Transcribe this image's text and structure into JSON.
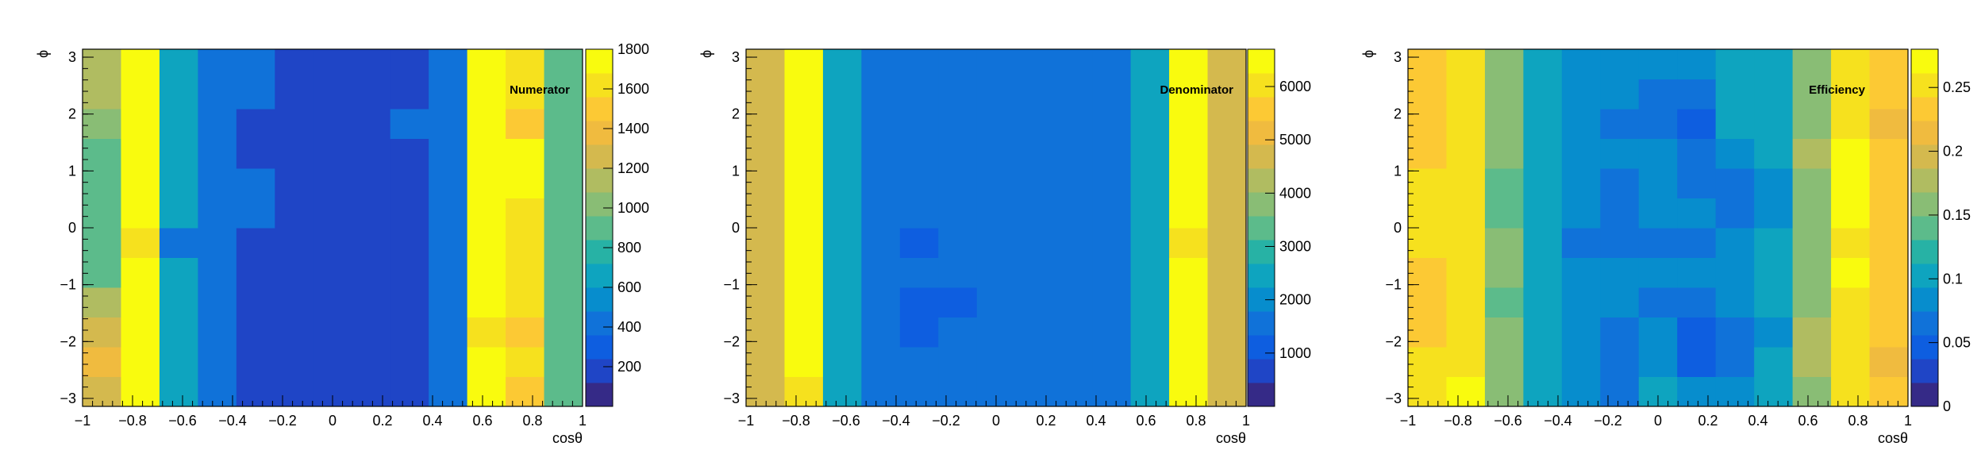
{
  "chart_data": [
    {
      "type": "heatmap",
      "title": "Numerator",
      "xlabel": "cosθ",
      "ylabel": "ϕ",
      "xlim": [
        -1,
        1
      ],
      "ylim": [
        -3.14,
        3.14
      ],
      "x_ticks": [
        "−1",
        "−0.8",
        "−0.6",
        "−0.4",
        "−0.2",
        "0",
        "0.2",
        "0.4",
        "0.6",
        "0.8",
        "1"
      ],
      "y_ticks": [
        "−3",
        "−2",
        "−1",
        "0",
        "1",
        "2",
        "3"
      ],
      "z_ticks": [
        "200",
        "400",
        "600",
        "800",
        "1000",
        "1200",
        "1400",
        "1600",
        "1800"
      ],
      "zlim": [
        0,
        1800
      ],
      "bins_x": 13,
      "bins_y": 12,
      "values": [
        [
          1250,
          1700,
          600,
          380,
          220,
          220,
          220,
          220,
          220,
          380,
          1780,
          1550,
          900
        ],
        [
          1350,
          1780,
          600,
          380,
          220,
          220,
          220,
          220,
          220,
          380,
          1780,
          1650,
          900
        ],
        [
          1200,
          1700,
          600,
          380,
          220,
          220,
          220,
          220,
          220,
          380,
          1650,
          1550,
          900
        ],
        [
          1100,
          1750,
          600,
          380,
          220,
          220,
          220,
          220,
          220,
          380,
          1700,
          1650,
          850
        ],
        [
          900,
          1700,
          600,
          380,
          220,
          220,
          220,
          220,
          220,
          380,
          1750,
          1650,
          850
        ],
        [
          900,
          1650,
          450,
          380,
          220,
          220,
          220,
          220,
          220,
          380,
          1700,
          1650,
          850
        ],
        [
          850,
          1700,
          600,
          380,
          380,
          220,
          220,
          220,
          220,
          380,
          1750,
          1650,
          850
        ],
        [
          850,
          1750,
          600,
          380,
          380,
          220,
          220,
          220,
          220,
          380,
          1800,
          1700,
          850
        ],
        [
          950,
          1750,
          600,
          380,
          220,
          220,
          220,
          220,
          220,
          380,
          1800,
          1700,
          900
        ],
        [
          1050,
          1750,
          600,
          380,
          220,
          220,
          220,
          220,
          380,
          380,
          1800,
          1550,
          900
        ],
        [
          1100,
          1750,
          600,
          380,
          380,
          220,
          220,
          220,
          220,
          380,
          1750,
          1600,
          950
        ],
        [
          1100,
          1750,
          600,
          380,
          380,
          220,
          220,
          220,
          220,
          380,
          1750,
          1600,
          950
        ]
      ]
    },
    {
      "type": "heatmap",
      "title": "Denominator",
      "xlabel": "cosθ",
      "ylabel": "ϕ",
      "xlim": [
        -1,
        1
      ],
      "ylim": [
        -3.14,
        3.14
      ],
      "x_ticks": [
        "−1",
        "−0.8",
        "−0.6",
        "−0.4",
        "−0.2",
        "0",
        "0.2",
        "0.4",
        "0.6",
        "0.8",
        "1"
      ],
      "y_ticks": [
        "−3",
        "−2",
        "−1",
        "0",
        "1",
        "2",
        "3"
      ],
      "z_ticks": [
        "1000",
        "2000",
        "3000",
        "4000",
        "5000",
        "6000"
      ],
      "zlim": [
        0,
        6700
      ],
      "bins_x": 13,
      "bins_y": 12,
      "values": [
        [
          4900,
          6200,
          2400,
          1700,
          1500,
          1500,
          1500,
          1500,
          1500,
          1700,
          2600,
          6600,
          4800
        ],
        [
          4800,
          6600,
          2400,
          1700,
          1500,
          1500,
          1500,
          1500,
          1500,
          1700,
          2400,
          6600,
          4800
        ],
        [
          4800,
          6600,
          2400,
          1700,
          1300,
          1500,
          1500,
          1500,
          1500,
          1700,
          2400,
          6600,
          4800
        ],
        [
          4800,
          6600,
          2400,
          1700,
          1300,
          1300,
          1500,
          1500,
          1500,
          1700,
          2400,
          6600,
          4800
        ],
        [
          4800,
          6600,
          2400,
          1700,
          1500,
          1500,
          1500,
          1500,
          1500,
          1700,
          2400,
          6600,
          4800
        ],
        [
          4800,
          6600,
          2400,
          1700,
          1300,
          1500,
          1500,
          1500,
          1500,
          1700,
          2400,
          6200,
          4800
        ],
        [
          4800,
          6600,
          2400,
          1700,
          1700,
          1500,
          1500,
          1500,
          1500,
          1700,
          2400,
          6600,
          4800
        ],
        [
          4800,
          6600,
          2400,
          1700,
          1500,
          1500,
          1500,
          1500,
          1500,
          1700,
          2400,
          6600,
          4800
        ],
        [
          4800,
          6600,
          2400,
          1700,
          1500,
          1500,
          1500,
          1500,
          1500,
          1700,
          2400,
          6600,
          4800
        ],
        [
          4800,
          6600,
          2400,
          1700,
          1500,
          1500,
          1500,
          1500,
          1500,
          1700,
          2400,
          6600,
          4800
        ],
        [
          4800,
          6600,
          2400,
          1700,
          1500,
          1500,
          1500,
          1500,
          1500,
          1700,
          2400,
          6600,
          4800
        ],
        [
          4800,
          6600,
          2400,
          1700,
          1500,
          1500,
          1500,
          1500,
          1500,
          1700,
          2400,
          6600,
          4800
        ]
      ]
    },
    {
      "type": "heatmap",
      "title": "Efficiency",
      "xlabel": "cosθ",
      "ylabel": "ϕ",
      "xlim": [
        -1,
        1
      ],
      "ylim": [
        -3.14,
        3.14
      ],
      "x_ticks": [
        "−1",
        "−0.8",
        "−0.6",
        "−0.4",
        "−0.2",
        "0",
        "0.2",
        "0.4",
        "0.6",
        "0.8",
        "1"
      ],
      "y_ticks": [
        "−3",
        "−2",
        "−1",
        "0",
        "1",
        "2",
        "3"
      ],
      "z_ticks": [
        "0",
        "0.05",
        "0.1",
        "0.15",
        "0.2",
        "0.25"
      ],
      "zlim": [
        0,
        0.28
      ],
      "bins_x": 13,
      "bins_y": 12,
      "values": [
        [
          0.25,
          0.28,
          0.15,
          0.1,
          0.08,
          0.07,
          0.1,
          0.08,
          0.08,
          0.1,
          0.15,
          0.25,
          0.23
        ],
        [
          0.25,
          0.26,
          0.15,
          0.1,
          0.08,
          0.07,
          0.08,
          0.05,
          0.07,
          0.1,
          0.17,
          0.26,
          0.22
        ],
        [
          0.24,
          0.25,
          0.16,
          0.11,
          0.08,
          0.07,
          0.08,
          0.05,
          0.07,
          0.09,
          0.17,
          0.26,
          0.23
        ],
        [
          0.24,
          0.25,
          0.14,
          0.11,
          0.09,
          0.08,
          0.07,
          0.07,
          0.08,
          0.1,
          0.15,
          0.26,
          0.23
        ],
        [
          0.23,
          0.25,
          0.15,
          0.1,
          0.08,
          0.09,
          0.08,
          0.08,
          0.09,
          0.11,
          0.16,
          0.27,
          0.23
        ],
        [
          0.25,
          0.25,
          0.15,
          0.11,
          0.07,
          0.07,
          0.07,
          0.07,
          0.08,
          0.1,
          0.16,
          0.26,
          0.23
        ],
        [
          0.25,
          0.25,
          0.14,
          0.1,
          0.08,
          0.07,
          0.08,
          0.08,
          0.07,
          0.09,
          0.16,
          0.27,
          0.24
        ],
        [
          0.25,
          0.25,
          0.14,
          0.1,
          0.08,
          0.07,
          0.08,
          0.06,
          0.07,
          0.09,
          0.16,
          0.27,
          0.24
        ],
        [
          0.24,
          0.26,
          0.15,
          0.1,
          0.09,
          0.08,
          0.08,
          0.07,
          0.08,
          0.1,
          0.18,
          0.27,
          0.24
        ],
        [
          0.24,
          0.26,
          0.15,
          0.1,
          0.08,
          0.07,
          0.07,
          0.05,
          0.11,
          0.11,
          0.15,
          0.25,
          0.22
        ],
        [
          0.24,
          0.26,
          0.16,
          0.11,
          0.08,
          0.08,
          0.07,
          0.07,
          0.11,
          0.11,
          0.16,
          0.25,
          0.23
        ],
        [
          0.24,
          0.26,
          0.16,
          0.11,
          0.08,
          0.08,
          0.09,
          0.08,
          0.11,
          0.11,
          0.16,
          0.25,
          0.23
        ]
      ]
    }
  ]
}
